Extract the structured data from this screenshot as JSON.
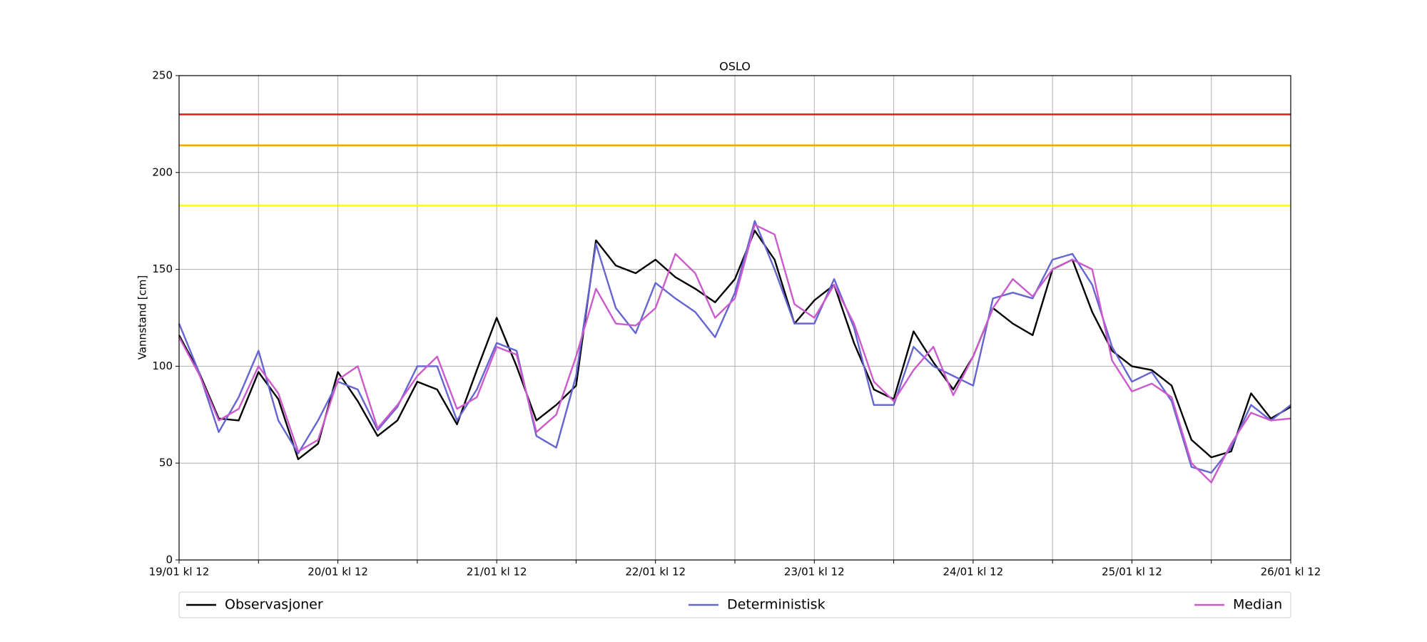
{
  "chart_data": {
    "type": "line",
    "title": "OSLO",
    "y_label": "Vannstand [cm]",
    "x": [
      0,
      3,
      6,
      9,
      12,
      15,
      18,
      21,
      24,
      27,
      30,
      33,
      36,
      39,
      42,
      45,
      48,
      51,
      54,
      57,
      60,
      63,
      66,
      69,
      72,
      75,
      78,
      81,
      84,
      87,
      90,
      93,
      96,
      99,
      102,
      105,
      108,
      111,
      114,
      117,
      120,
      123,
      126,
      129,
      132,
      135,
      138,
      141,
      144,
      147,
      150,
      153,
      156,
      159,
      162,
      165,
      168
    ],
    "xlim": [
      0,
      168
    ],
    "xticks": [
      {
        "value": 0,
        "label": "19/01 kl 12"
      },
      {
        "value": 24,
        "label": "20/01 kl 12"
      },
      {
        "value": 48,
        "label": "21/01 kl 12"
      },
      {
        "value": 72,
        "label": "22/01 kl 12"
      },
      {
        "value": 96,
        "label": "23/01 kl 12"
      },
      {
        "value": 120,
        "label": "24/01 kl 12"
      },
      {
        "value": 144,
        "label": "25/01 kl 12"
      },
      {
        "value": 168,
        "label": "26/01 kl 12"
      }
    ],
    "xminor_ticks": [
      12,
      36,
      60,
      84,
      108,
      132,
      156
    ],
    "ylim": [
      0,
      250
    ],
    "yticks": [
      0,
      50,
      100,
      150,
      200,
      250
    ],
    "grid": true,
    "thresholds": [
      {
        "value": 230,
        "color": "#e41a1c"
      },
      {
        "value": 214,
        "color": "#ffa500"
      },
      {
        "value": 183,
        "color": "#ffff00"
      }
    ],
    "series": [
      {
        "name": "Observasjoner",
        "color": "#000000",
        "values": [
          116,
          97,
          73,
          72,
          97,
          83,
          52,
          60,
          97,
          82,
          64,
          72,
          92,
          88,
          70,
          98,
          125,
          100,
          72,
          80,
          90,
          165,
          152,
          148,
          155,
          146,
          140,
          133,
          145,
          170,
          155,
          122,
          134,
          142,
          112,
          88,
          83,
          118,
          102,
          88,
          105,
          130,
          122,
          116,
          150,
          155,
          128,
          108,
          100,
          98,
          90,
          62,
          53,
          56,
          86,
          73,
          79
        ]
      },
      {
        "name": "Deterministisk",
        "color": "#6464d2",
        "values": [
          122,
          97,
          66,
          84,
          108,
          72,
          55,
          72,
          92,
          88,
          67,
          79,
          100,
          100,
          72,
          88,
          112,
          108,
          64,
          58,
          95,
          163,
          130,
          117,
          143,
          135,
          128,
          115,
          138,
          175,
          150,
          122,
          122,
          145,
          120,
          80,
          80,
          110,
          100,
          95,
          90,
          135,
          138,
          135,
          155,
          158,
          142,
          110,
          92,
          97,
          82,
          48,
          45,
          58,
          80,
          72,
          80
        ]
      },
      {
        "name": "Median",
        "color": "#cc5acc",
        "values": [
          115,
          96,
          72,
          78,
          100,
          86,
          56,
          62,
          93,
          100,
          68,
          80,
          95,
          105,
          78,
          84,
          110,
          106,
          66,
          75,
          105,
          140,
          122,
          121,
          130,
          158,
          148,
          125,
          135,
          173,
          168,
          132,
          125,
          142,
          122,
          92,
          82,
          98,
          110,
          85,
          105,
          130,
          145,
          136,
          150,
          155,
          150,
          103,
          87,
          91,
          84,
          50,
          40,
          60,
          76,
          72,
          73
        ]
      }
    ]
  }
}
